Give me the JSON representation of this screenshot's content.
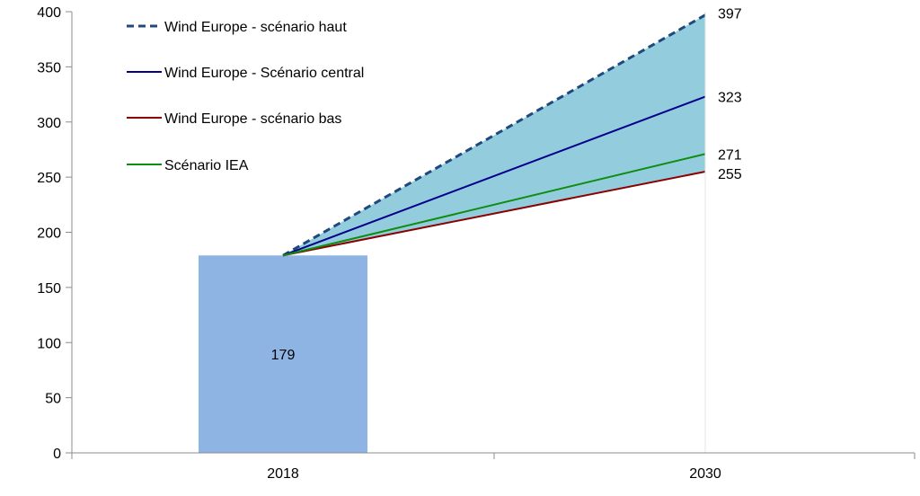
{
  "chart_data": {
    "type": "bar+line",
    "x_categories": [
      "2018",
      "2030"
    ],
    "ylim": [
      0,
      400
    ],
    "y_ticks": [
      0,
      50,
      100,
      150,
      200,
      250,
      300,
      350,
      400
    ],
    "y_tick_labels": [
      "0",
      "50",
      "100",
      "150",
      "200",
      "250",
      "300",
      "350",
      "400"
    ],
    "bar": {
      "category": "2018",
      "value": 179,
      "label": "179",
      "color": "#8eb4e3"
    },
    "band": {
      "color": "#93cddd",
      "from_series": "Wind Europe - scénario haut",
      "to_series": "Wind Europe - scénario bas"
    },
    "series": [
      {
        "name": "Wind Europe - scénario haut",
        "start": 179,
        "end": 397,
        "end_label": "397",
        "color": "#1f497d",
        "dash": true
      },
      {
        "name": "Wind Europe - Scénario central",
        "start": 179,
        "end": 323,
        "end_label": "323",
        "color": "#00008b",
        "dash": false
      },
      {
        "name": "Wind Europe - scénario bas",
        "start": 179,
        "end": 255,
        "end_label": "255",
        "color": "#8b0000",
        "dash": false
      },
      {
        "name": "Scénario IEA",
        "start": 179,
        "end": 271,
        "end_label": "271",
        "color": "#108c10",
        "dash": false
      }
    ],
    "legend_position": "top-left",
    "grid": false
  }
}
